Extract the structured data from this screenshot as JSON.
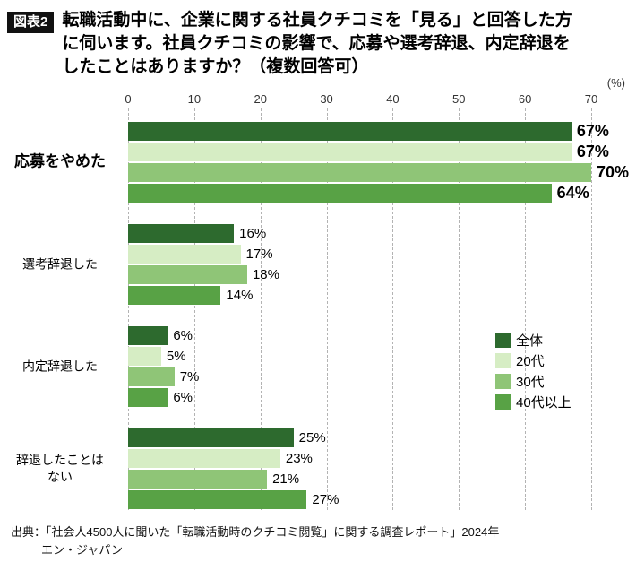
{
  "header": {
    "badge": "図表2",
    "title_lines": [
      "転職活動中に、企業に関する社員クチコミを「見る」と回答した方",
      "に伺います。社員クチコミの影響で、応募や選考辞退、内定辞退を",
      "したことはありますか？（複数回答可）"
    ]
  },
  "chart_data": {
    "type": "bar",
    "orientation": "horizontal",
    "title": "社員クチコミの影響で、応募や選考辞退、内定辞退をしたことはありますか？（複数回答可）",
    "unit_label": "(%)",
    "value_suffix": "%",
    "axis_max": 70,
    "ticks": [
      0,
      10,
      20,
      30,
      40,
      50,
      60,
      70
    ],
    "grid": "dashed-vertical",
    "legend_position": "middle-right",
    "categories": [
      "応募をやめた",
      "選考辞退した",
      "内定辞退した",
      "辞退したことは\nない"
    ],
    "series": [
      {
        "name": "全体",
        "color": "#2d6a2e",
        "values": [
          67,
          16,
          6,
          25
        ]
      },
      {
        "name": "20代",
        "color": "#d6edc4",
        "values": [
          67,
          17,
          5,
          23
        ]
      },
      {
        "name": "30代",
        "color": "#8fc577",
        "values": [
          70,
          18,
          7,
          21
        ]
      },
      {
        "name": "40代以上",
        "color": "#58a245",
        "values": [
          64,
          14,
          6,
          27
        ]
      }
    ]
  },
  "footer": {
    "line1": "出典：「社会人4500人に聞いた「転職活動時のクチコミ閲覧」に関する調査レポート」2024年",
    "line2": "エン・ジャパン"
  }
}
